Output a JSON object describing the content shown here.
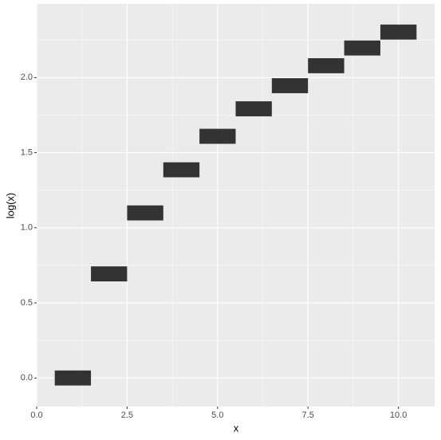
{
  "chart_data": {
    "type": "tile",
    "x_label": "x",
    "y_label": "log(x)",
    "x": [
      1,
      2,
      3,
      4,
      5,
      6,
      7,
      8,
      9,
      10
    ],
    "values": [
      0,
      0.693,
      1.099,
      1.386,
      1.609,
      1.792,
      1.946,
      2.079,
      2.197,
      2.303
    ],
    "tile_width": 1,
    "tile_height": 0.1,
    "color": "#333333",
    "xlim": [
      0,
      11
    ],
    "xticks": [
      {
        "value": 0,
        "label": "0.0"
      },
      {
        "value": 2.5,
        "label": "2.5"
      },
      {
        "value": 5,
        "label": "5.0"
      },
      {
        "value": 7.5,
        "label": "7.5"
      },
      {
        "value": 10,
        "label": "10.0"
      }
    ],
    "ylim": [
      -0.19,
      2.49
    ],
    "yticks": [
      {
        "value": 0,
        "label": "0.0"
      },
      {
        "value": 0.5,
        "label": "0.5"
      },
      {
        "value": 1,
        "label": "1.0"
      },
      {
        "value": 1.5,
        "label": "1.5"
      },
      {
        "value": 2,
        "label": "2.0"
      }
    ],
    "grid": true
  }
}
